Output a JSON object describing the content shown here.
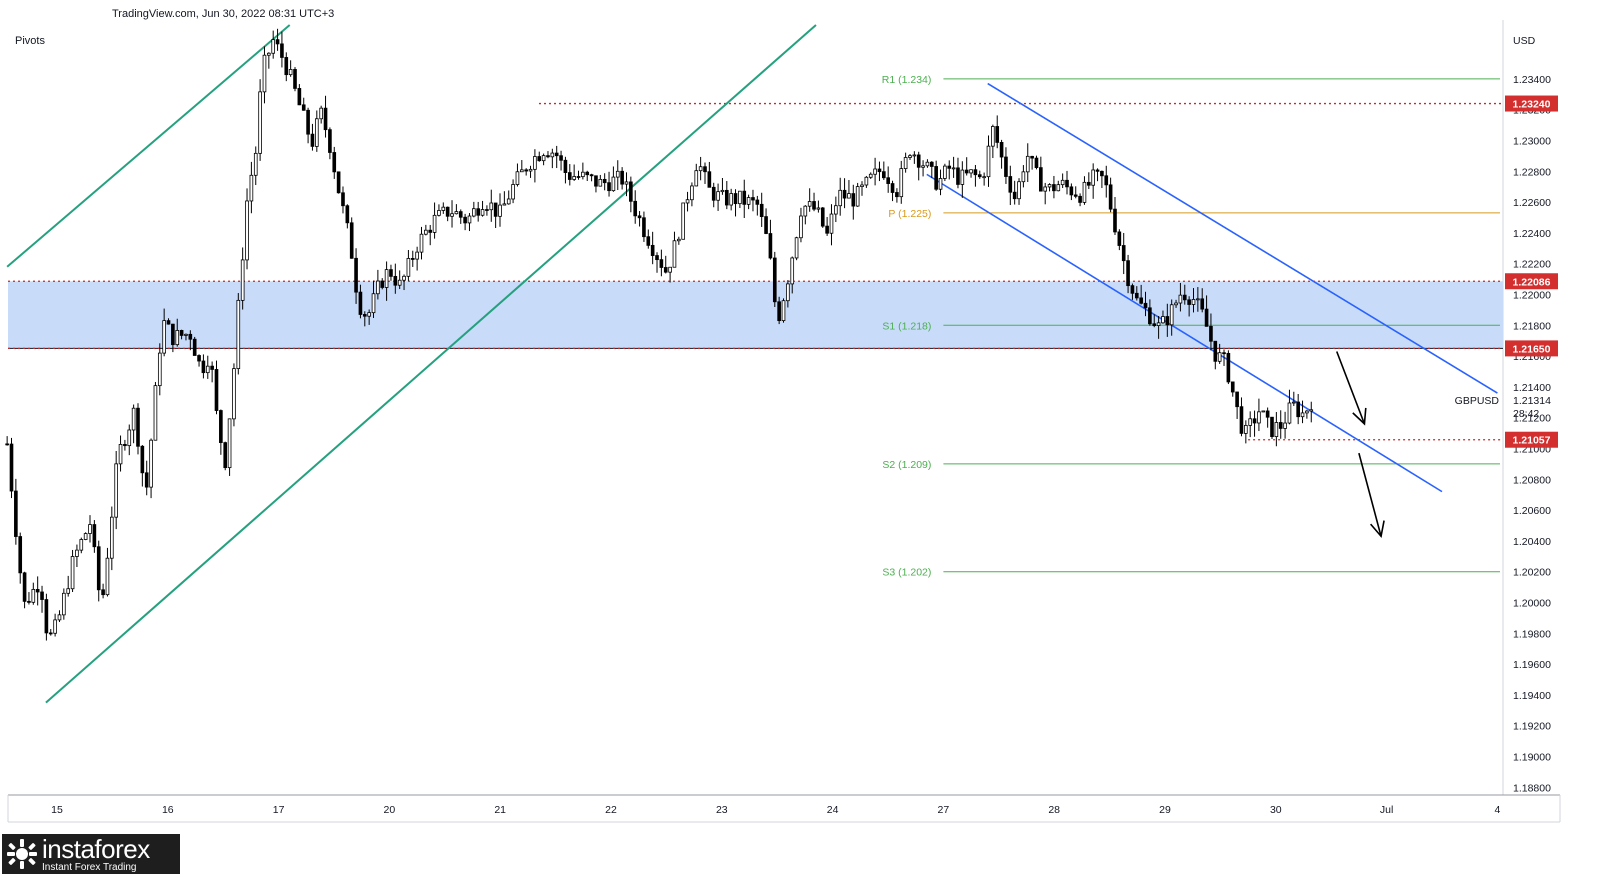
{
  "header": {
    "source": "TradingView.com, Jun 30, 2022 08:31 UTC+3",
    "indicator": "Pivots"
  },
  "watermark": {
    "brand": "instaforex",
    "tagline": "Instant Forex Trading"
  },
  "colors": {
    "up_candle": "#ffffff",
    "down_candle": "#000000",
    "candle_outline": "#000000",
    "zone_fill": "#c8dcfa",
    "zone_border": "#131722",
    "resistance_dotted": "#c62828",
    "price_label_bg": "#d32f2f",
    "pivot_orange": "#d79a1c",
    "pivot_green": "#4caf50",
    "rising_channel": "#26a17f",
    "falling_channel": "#2962ff",
    "arrow": "#000000"
  },
  "chart_data": {
    "type": "candlestick",
    "symbol": "GBPUSD",
    "currency": "USD",
    "last_price": 1.21314,
    "countdown": "28:42",
    "ylim": [
      1.1875,
      1.2375
    ],
    "y_ticks": [
      1.188,
      1.19,
      1.192,
      1.194,
      1.196,
      1.198,
      1.2,
      1.202,
      1.204,
      1.206,
      1.208,
      1.21,
      1.212,
      1.214,
      1.216,
      1.218,
      1.22,
      1.222,
      1.224,
      1.226,
      1.228,
      1.23,
      1.232,
      1.234
    ],
    "y_tick_labels": [
      "1.18800",
      "1.19000",
      "1.19200",
      "1.19400",
      "1.19600",
      "1.19800",
      "1.20000",
      "1.20200",
      "1.20400",
      "1.20600",
      "1.20800",
      "1.21000",
      "1.21200",
      "1.21400",
      "1.21600",
      "1.21800",
      "1.22000",
      "1.22200",
      "1.22400",
      "1.22600",
      "1.22800",
      "1.23000",
      "1.23200",
      "1.23400"
    ],
    "x_ticks": [
      "15",
      "16",
      "17",
      "20",
      "21",
      "22",
      "23",
      "24",
      "27",
      "28",
      "29",
      "30",
      "Jul",
      "4"
    ],
    "x_range": [
      0,
      13.4
    ],
    "x_tick_positions": [
      0,
      1,
      2,
      3,
      4,
      5,
      6,
      7,
      8,
      9,
      10,
      11,
      12,
      13
    ],
    "price_levels": [
      {
        "label": "1.23240",
        "value": 1.2324,
        "x_from": 4.35
      },
      {
        "label": "1.22086",
        "value": 1.22086,
        "x_from": -0.45
      },
      {
        "label": "1.21650",
        "value": 1.2165,
        "x_from": -0.45
      },
      {
        "label": "1.21057",
        "value": 1.21057,
        "x_from": 10.75
      }
    ],
    "pivots": [
      {
        "label": "R1 (1.234)",
        "value": 1.234,
        "kind": "R1"
      },
      {
        "label": "P (1.225)",
        "value": 1.2253,
        "kind": "P"
      },
      {
        "label": "S1 (1.218)",
        "value": 1.218,
        "kind": "S1"
      },
      {
        "label": "S2 (1.209)",
        "value": 1.209,
        "kind": "S2"
      },
      {
        "label": "S3 (1.202)",
        "value": 1.202,
        "kind": "S3"
      }
    ],
    "pivot_x_from": 8.0,
    "zone": {
      "top": 1.22086,
      "bottom": 1.2165
    },
    "rising_channel": [
      {
        "from": [
          -0.1,
          1.1935
        ],
        "to": [
          6.85,
          1.2375
        ]
      },
      {
        "from": [
          -0.45,
          1.2218
        ],
        "to": [
          2.1,
          1.2375
        ]
      }
    ],
    "falling_channel": [
      {
        "from": [
          8.4,
          1.2337
        ],
        "to": [
          13.0,
          1.2136
        ]
      },
      {
        "from": [
          7.85,
          1.2278
        ],
        "to": [
          12.5,
          1.2072
        ]
      }
    ],
    "arrows": [
      {
        "from": [
          11.55,
          1.2163
        ],
        "to": [
          11.8,
          1.2116
        ]
      },
      {
        "from": [
          11.75,
          1.2097
        ],
        "to": [
          11.95,
          1.2043
        ]
      }
    ],
    "candle_anchors": [
      [
        -0.45,
        1.2103
      ],
      [
        -0.3,
        1.1998
      ],
      [
        -0.15,
        1.2015
      ],
      [
        -0.08,
        1.1975
      ],
      [
        0.0,
        1.1985
      ],
      [
        0.15,
        1.2028
      ],
      [
        0.3,
        1.2052
      ],
      [
        0.4,
        1.1995
      ],
      [
        0.55,
        1.2095
      ],
      [
        0.7,
        1.2125
      ],
      [
        0.8,
        1.2068
      ],
      [
        0.9,
        1.2145
      ],
      [
        0.95,
        1.2183
      ],
      [
        1.05,
        1.2172
      ],
      [
        1.2,
        1.2175
      ],
      [
        1.3,
        1.2151
      ],
      [
        1.38,
        1.2162
      ],
      [
        1.45,
        1.2115
      ],
      [
        1.52,
        1.2092
      ],
      [
        1.6,
        1.2155
      ],
      [
        1.65,
        1.2205
      ],
      [
        1.72,
        1.2265
      ],
      [
        1.8,
        1.2295
      ],
      [
        1.85,
        1.2345
      ],
      [
        1.95,
        1.2365
      ],
      [
        2.05,
        1.2352
      ],
      [
        2.12,
        1.2338
      ],
      [
        2.2,
        1.232
      ],
      [
        2.3,
        1.2298
      ],
      [
        2.38,
        1.2318
      ],
      [
        2.45,
        1.2302
      ],
      [
        2.55,
        1.2265
      ],
      [
        2.65,
        1.2232
      ],
      [
        2.72,
        1.2195
      ],
      [
        2.8,
        1.2185
      ],
      [
        2.92,
        1.2208
      ],
      [
        3.0,
        1.2216
      ],
      [
        3.1,
        1.2205
      ],
      [
        3.25,
        1.2232
      ],
      [
        3.4,
        1.2248
      ],
      [
        3.55,
        1.2255
      ],
      [
        3.7,
        1.2248
      ],
      [
        3.85,
        1.2262
      ],
      [
        4.0,
        1.2252
      ],
      [
        4.1,
        1.2268
      ],
      [
        4.25,
        1.2285
      ],
      [
        4.4,
        1.2295
      ],
      [
        4.5,
        1.2292
      ],
      [
        4.6,
        1.2278
      ],
      [
        4.75,
        1.2276
      ],
      [
        4.9,
        1.2272
      ],
      [
        5.1,
        1.2275
      ],
      [
        5.2,
        1.2258
      ],
      [
        5.3,
        1.2242
      ],
      [
        5.42,
        1.2225
      ],
      [
        5.5,
        1.2215
      ],
      [
        5.58,
        1.2232
      ],
      [
        5.68,
        1.2262
      ],
      [
        5.78,
        1.2288
      ],
      [
        5.88,
        1.2268
      ],
      [
        6.0,
        1.2262
      ],
      [
        6.15,
        1.2262
      ],
      [
        6.32,
        1.2258
      ],
      [
        6.42,
        1.2232
      ],
      [
        6.5,
        1.2182
      ],
      [
        6.6,
        1.2212
      ],
      [
        6.72,
        1.2258
      ],
      [
        6.85,
        1.2255
      ],
      [
        6.95,
        1.2238
      ],
      [
        7.05,
        1.2265
      ],
      [
        7.2,
        1.2262
      ],
      [
        7.35,
        1.2275
      ],
      [
        7.45,
        1.2282
      ],
      [
        7.58,
        1.2268
      ],
      [
        7.7,
        1.2295
      ],
      [
        7.82,
        1.2285
      ],
      [
        7.95,
        1.2272
      ],
      [
        8.05,
        1.2282
      ],
      [
        8.15,
        1.2275
      ],
      [
        8.25,
        1.2278
      ],
      [
        8.35,
        1.2275
      ],
      [
        8.45,
        1.2308
      ],
      [
        8.55,
        1.2282
      ],
      [
        8.65,
        1.2262
      ],
      [
        8.75,
        1.2292
      ],
      [
        8.85,
        1.2275
      ],
      [
        8.95,
        1.2268
      ],
      [
        9.05,
        1.2272
      ],
      [
        9.15,
        1.2268
      ],
      [
        9.25,
        1.2265
      ],
      [
        9.35,
        1.2275
      ],
      [
        9.45,
        1.2275
      ],
      [
        9.55,
        1.2245
      ],
      [
        9.65,
        1.2215
      ],
      [
        9.75,
        1.2195
      ],
      [
        9.85,
        1.2188
      ],
      [
        9.95,
        1.2178
      ],
      [
        10.05,
        1.2188
      ],
      [
        10.15,
        1.2202
      ],
      [
        10.25,
        1.2198
      ],
      [
        10.35,
        1.2185
      ],
      [
        10.45,
        1.2162
      ],
      [
        10.55,
        1.2155
      ],
      [
        10.65,
        1.2125
      ],
      [
        10.72,
        1.2108
      ],
      [
        10.85,
        1.2125
      ],
      [
        10.95,
        1.2112
      ],
      [
        11.05,
        1.2115
      ],
      [
        11.15,
        1.2128
      ],
      [
        11.25,
        1.2122
      ],
      [
        11.32,
        1.2131
      ]
    ]
  }
}
